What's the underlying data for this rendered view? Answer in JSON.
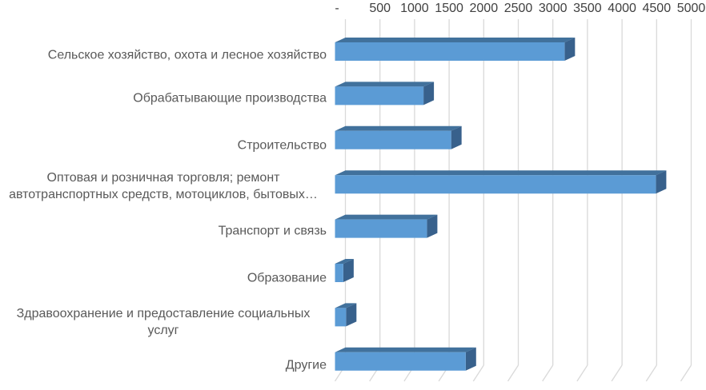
{
  "chart_data": {
    "type": "bar",
    "orientation": "horizontal",
    "style": "3d",
    "title": "",
    "xlabel": "",
    "ylabel": "",
    "categories": [
      "Сельское хозяйство, охота и лесное хозяйство",
      "Обрабатывающие производства",
      "Строительство",
      "Оптовая и розничная торговля; ремонт\nавтотранспортных средств, мотоциклов, бытовых…",
      "Транспорт и связь",
      "Образование",
      "Здравоохранение и предоставление социальных\nуслуг",
      "Другие"
    ],
    "values": [
      3320,
      1280,
      1680,
      4640,
      1330,
      120,
      160,
      1890
    ],
    "tick_labels": [
      "-",
      "500",
      "1000",
      "1500",
      "2000",
      "2500",
      "3000",
      "3500",
      "4000",
      "4500",
      "5000"
    ],
    "xlim": [
      0,
      5000
    ],
    "tick_step": 500,
    "grid": "on",
    "legend": "none",
    "colors": {
      "bar_face": "#5B9BD5",
      "bar_top": "#41719C",
      "bar_side": "#38618C",
      "gridline": "#D9D9D9",
      "axis_text": "#404040",
      "label_text": "#595959",
      "background": "#FFFFFF"
    }
  }
}
